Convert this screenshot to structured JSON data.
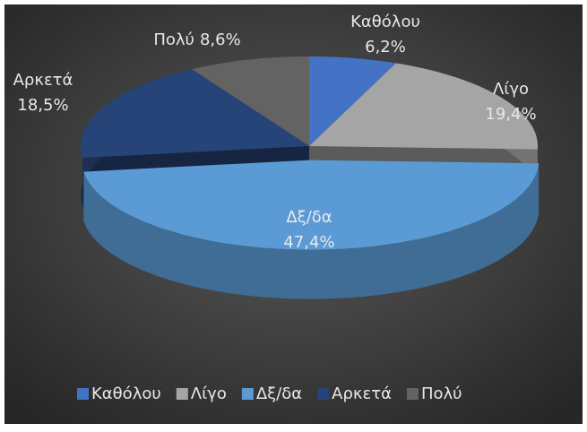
{
  "chart_data": {
    "type": "pie",
    "categories": [
      "Καθόλου",
      "Λίγο",
      "Δξ/δα",
      "Αρκετά",
      "Πολύ"
    ],
    "values": [
      6.2,
      19.4,
      47.4,
      18.5,
      8.6
    ],
    "value_labels": [
      "6,2%",
      "19,4%",
      "47,4%",
      "18,5%",
      "8,6%"
    ],
    "colors": [
      "#4472c4",
      "#a5a5a5",
      "#5b9bd5",
      "#264478",
      "#636363"
    ],
    "legend": "bottom"
  }
}
